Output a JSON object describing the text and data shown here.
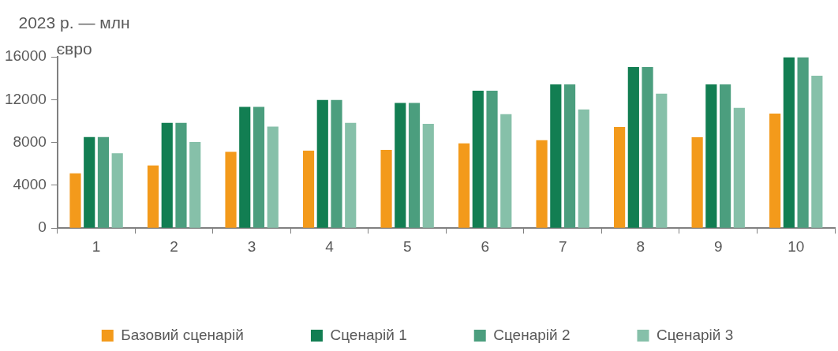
{
  "chart_data": {
    "type": "bar",
    "ylabel": "2023 р. — млн євро",
    "categories": [
      "1",
      "2",
      "3",
      "4",
      "5",
      "6",
      "7",
      "8",
      "9",
      "10"
    ],
    "series": [
      {
        "name": "Базовий сценарій",
        "color": "#f39a1b",
        "values": [
          5120,
          5850,
          7120,
          7230,
          7310,
          7920,
          8210,
          9440,
          8480,
          10690
        ]
      },
      {
        "name": "Сценарій 1",
        "color": "#127e52",
        "values": [
          8500,
          9830,
          11330,
          11960,
          11690,
          12830,
          13420,
          15040,
          13420,
          15940
        ]
      },
      {
        "name": "Сценарій 2",
        "color": "#4b9e7e",
        "values": [
          8500,
          9830,
          11330,
          11960,
          11690,
          12830,
          13420,
          15040,
          13420,
          15940
        ]
      },
      {
        "name": "Сценарій 3",
        "color": "#86c0a9",
        "values": [
          7000,
          8040,
          9480,
          9830,
          9730,
          10650,
          11080,
          12560,
          11230,
          14230
        ]
      }
    ],
    "ylim": [
      0,
      16000
    ],
    "yticks": [
      0,
      4000,
      8000,
      12000,
      16000
    ],
    "grid": false,
    "legend": "bottom"
  }
}
